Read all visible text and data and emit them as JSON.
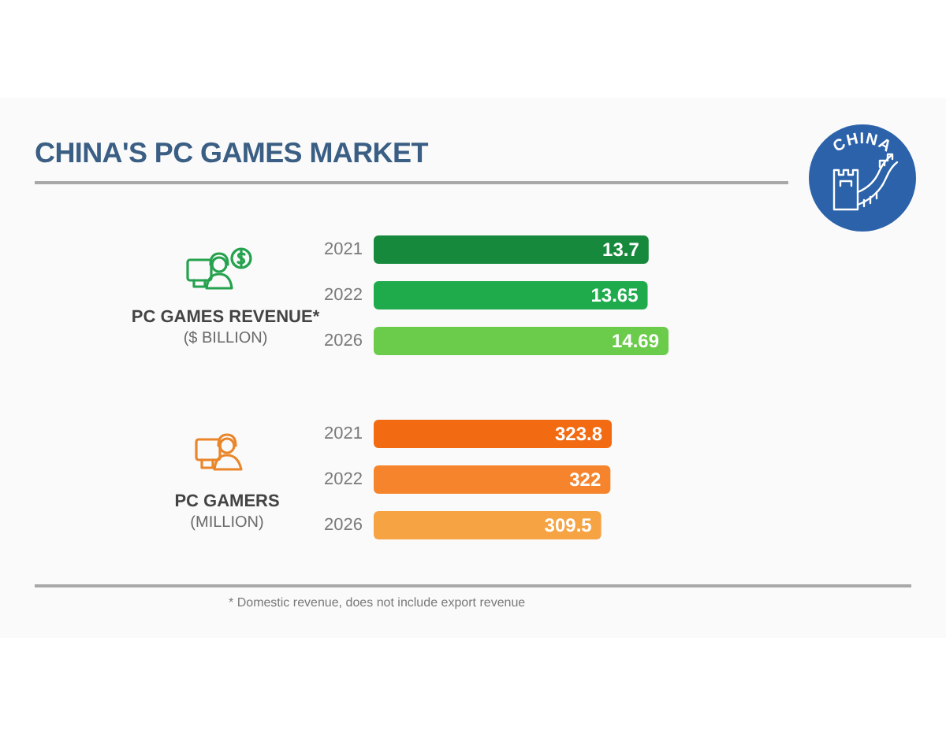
{
  "chart_data": [
    {
      "type": "other",
      "title": "CHINA'S PC GAMES MARKET",
      "annotations": [
        "CHINA"
      ]
    },
    {
      "type": "bar",
      "orientation": "horizontal",
      "title": "PC GAMES REVENUE*",
      "subtitle": "($ BILLION)",
      "categories": [
        "2021",
        "2022",
        "2026"
      ],
      "values": [
        13.7,
        13.65,
        14.69
      ],
      "colors": [
        "#17893c",
        "#1fab4c",
        "#6bcb4b"
      ],
      "data_labels": true,
      "tick_labels": "y"
    },
    {
      "type": "bar",
      "orientation": "horizontal",
      "title": "PC GAMERS",
      "subtitle": "(MILLION)",
      "categories": [
        "2021",
        "2022",
        "2026"
      ],
      "values": [
        323.8,
        322,
        309.5
      ],
      "colors": [
        "#f26a12",
        "#f5842c",
        "#f6a343"
      ],
      "data_labels": true,
      "tick_labels": "y"
    },
    {
      "type": "other",
      "annotations": [
        "* Domestic revenue, does not include export revenue"
      ]
    }
  ]
}
